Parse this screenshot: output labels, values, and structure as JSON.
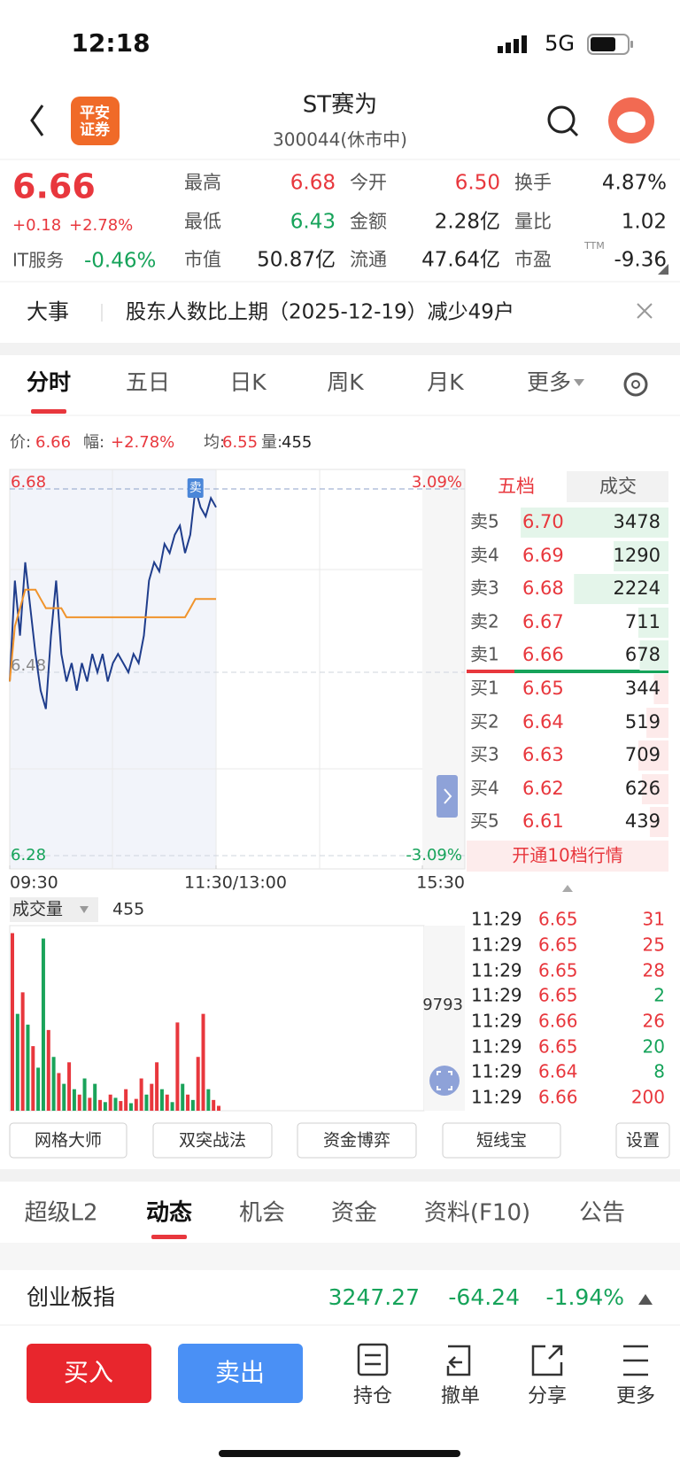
{
  "status_bar": {
    "time": "12:18",
    "network": "5G"
  },
  "header": {
    "title": "ST赛为",
    "subtitle": "300044(休市中)",
    "logo": [
      "平安",
      "证券"
    ]
  },
  "quote": {
    "price": "6.66",
    "change": "+0.18",
    "change_pct": "+2.78%",
    "sector": "IT服务",
    "sector_pct": "-0.46%",
    "pe_note": "TTM",
    "stats": [
      {
        "label": "最高",
        "value": "6.68",
        "color": "#e8373d"
      },
      {
        "label": "今开",
        "value": "6.50",
        "color": "#e8373d"
      },
      {
        "label": "换手",
        "value": "4.87%",
        "color": "#222222"
      },
      {
        "label": "最低",
        "value": "6.43",
        "color": "#16a35a"
      },
      {
        "label": "金额",
        "value": "2.28亿",
        "color": "#222222"
      },
      {
        "label": "量比",
        "value": "1.02",
        "color": "#222222"
      },
      {
        "label": "市值",
        "value": "50.87亿",
        "color": "#222222"
      },
      {
        "label": "流通",
        "value": "47.64亿",
        "color": "#222222"
      },
      {
        "label": "市盈",
        "value": "-9.36",
        "color": "#222222"
      }
    ]
  },
  "news": {
    "tag": "大事",
    "text": "股东人数比上期（2025-12-19）减少49户"
  },
  "tabs": [
    "分时",
    "五日",
    "日K",
    "周K",
    "月K",
    "更多"
  ],
  "info_bar": [
    {
      "label": "价:",
      "value": "6.66",
      "color": "#e8373d"
    },
    {
      "label": "幅:",
      "value": "+2.78%",
      "color": "#e8373d"
    },
    {
      "label": "均:",
      "value": "6.55",
      "color": "#e8373d"
    },
    {
      "label": "量:",
      "value": "455",
      "color": "#222222"
    }
  ],
  "chart_data": [
    {
      "type": "line",
      "marker": "卖",
      "x": [
        0,
        3,
        6,
        9,
        12,
        15,
        18,
        21,
        24,
        27,
        30,
        33,
        36,
        39,
        42,
        45,
        48,
        51,
        54,
        57,
        60,
        63,
        66,
        69,
        72,
        75,
        78,
        81,
        84,
        87,
        90,
        93,
        96,
        99,
        102,
        105,
        108,
        111,
        114,
        117,
        120
      ],
      "xlim": [
        0,
        240
      ],
      "xticks": [
        {
          "value": 0,
          "label": "09:30"
        },
        {
          "value": 120,
          "label": "11:30/13:00"
        },
        {
          "value": 240,
          "label": "15:30"
        }
      ],
      "ylim": [
        6.28,
        6.68
      ],
      "yticks": [
        6.68,
        6.48,
        6.28
      ],
      "ytick_colors": [
        "#e8373d",
        "#888888",
        "#16a35a"
      ],
      "y2lim": [
        -3.09,
        3.09
      ],
      "y2ticks": [
        {
          "value": 3.09,
          "label": "3.09%"
        },
        {
          "value": -3.09,
          "label": "-3.09%"
        }
      ],
      "y2tick_colors": [
        "#e8373d",
        "#16a35a"
      ],
      "series": [
        {
          "color": "#1f3d8c",
          "values": [
            6.47,
            6.58,
            6.52,
            6.6,
            6.55,
            6.5,
            6.46,
            6.44,
            6.52,
            6.58,
            6.5,
            6.47,
            6.49,
            6.46,
            6.49,
            6.47,
            6.5,
            6.48,
            6.5,
            6.47,
            6.49,
            6.5,
            6.49,
            6.48,
            6.5,
            6.49,
            6.52,
            6.58,
            6.6,
            6.59,
            6.62,
            6.61,
            6.63,
            6.64,
            6.61,
            6.63,
            6.68,
            6.66,
            6.65,
            6.67,
            6.66
          ]
        },
        {
          "color": "#f0932b",
          "values": [
            6.47,
            6.53,
            6.55,
            6.57,
            6.57,
            6.57,
            6.56,
            6.55,
            6.55,
            6.55,
            6.55,
            6.54,
            6.54,
            6.54,
            6.54,
            6.54,
            6.54,
            6.54,
            6.54,
            6.54,
            6.54,
            6.54,
            6.54,
            6.54,
            6.54,
            6.54,
            6.54,
            6.54,
            6.54,
            6.54,
            6.54,
            6.54,
            6.54,
            6.54,
            6.54,
            6.55,
            6.56,
            6.56,
            6.56,
            6.56,
            6.56
          ]
        }
      ]
    },
    {
      "type": "bar",
      "label": "成交量",
      "current": "455",
      "x": [
        0,
        3,
        6,
        9,
        12,
        15,
        18,
        21,
        24,
        27,
        30,
        33,
        36,
        39,
        42,
        45,
        48,
        51,
        54,
        57,
        60,
        63,
        66,
        69,
        72,
        75,
        78,
        81,
        84,
        87,
        90,
        93,
        96,
        99,
        102,
        105,
        108,
        111,
        114,
        117,
        120
      ],
      "xlim": [
        0,
        240
      ],
      "ylim": [
        0,
        17200
      ],
      "yticks": [
        9793
      ],
      "values": [
        16500,
        9000,
        11000,
        8000,
        6000,
        4000,
        16000,
        7500,
        5000,
        3500,
        2500,
        4500,
        2000,
        1500,
        3000,
        1200,
        2500,
        1000,
        800,
        1500,
        1200,
        900,
        2000,
        700,
        1100,
        3000,
        1500,
        2500,
        4500,
        2000,
        1500,
        800,
        8200,
        2500,
        1500,
        1000,
        5000,
        9000,
        2000,
        1000,
        455
      ],
      "colors": [
        "#e8373d",
        "#1aa35a",
        "#e8373d",
        "#1aa35a",
        "#e8373d",
        "#1aa35a",
        "#1aa35a",
        "#e8373d",
        "#1aa35a",
        "#e8373d",
        "#1aa35a",
        "#e8373d",
        "#1aa35a",
        "#e8373d",
        "#1aa35a",
        "#e8373d",
        "#1aa35a",
        "#e8373d",
        "#1aa35a",
        "#e8373d",
        "#1aa35a",
        "#e8373d",
        "#e8373d",
        "#1aa35a",
        "#e8373d",
        "#e8373d",
        "#1aa35a",
        "#e8373d",
        "#e8373d",
        "#1aa35a",
        "#e8373d",
        "#1aa35a",
        "#e8373d",
        "#1aa35a",
        "#e8373d",
        "#1aa35a",
        "#e8373d",
        "#e8373d",
        "#1aa35a",
        "#e8373d",
        "#e8373d"
      ]
    }
  ],
  "order_book": {
    "tabs": [
      "五档",
      "成交"
    ],
    "asks": [
      {
        "label": "卖5",
        "price": "6.70",
        "volume": 3478
      },
      {
        "label": "卖4",
        "price": "6.69",
        "volume": 1290
      },
      {
        "label": "卖3",
        "price": "6.68",
        "volume": 2224
      },
      {
        "label": "卖2",
        "price": "6.67",
        "volume": 711
      },
      {
        "label": "卖1",
        "price": "6.66",
        "volume": 678
      }
    ],
    "bids": [
      {
        "label": "买1",
        "price": "6.65",
        "volume": 344
      },
      {
        "label": "买2",
        "price": "6.64",
        "volume": 519
      },
      {
        "label": "买3",
        "price": "6.63",
        "volume": 709
      },
      {
        "label": "买4",
        "price": "6.62",
        "volume": 626
      },
      {
        "label": "买5",
        "price": "6.61",
        "volume": 439
      }
    ],
    "upgrade": "开通10档行情"
  },
  "trades": [
    {
      "time": "11:29",
      "price": "6.65",
      "volume": "31",
      "color": "#e8373d"
    },
    {
      "time": "11:29",
      "price": "6.65",
      "volume": "25",
      "color": "#e8373d"
    },
    {
      "time": "11:29",
      "price": "6.65",
      "volume": "28",
      "color": "#e8373d"
    },
    {
      "time": "11:29",
      "price": "6.65",
      "volume": "2",
      "color": "#16a35a"
    },
    {
      "time": "11:29",
      "price": "6.66",
      "volume": "26",
      "color": "#e8373d"
    },
    {
      "time": "11:29",
      "price": "6.65",
      "volume": "20",
      "color": "#16a35a"
    },
    {
      "time": "11:29",
      "price": "6.64",
      "volume": "8",
      "color": "#16a35a"
    },
    {
      "time": "11:29",
      "price": "6.66",
      "volume": "200",
      "color": "#e8373d"
    }
  ],
  "tools": [
    "网格大师",
    "双突战法",
    "资金博弈",
    "短线宝",
    "设置"
  ],
  "content_tabs": [
    "超级L2",
    "动态",
    "机会",
    "资金",
    "资料(F10)",
    "公告"
  ],
  "index": {
    "name": "创业板指",
    "value": "3247.27",
    "change": "-64.24",
    "change_pct": "-1.94%"
  },
  "actions": {
    "buy": "买入",
    "sell": "卖出",
    "menu": [
      "持仓",
      "撤单",
      "分享",
      "更多"
    ]
  }
}
